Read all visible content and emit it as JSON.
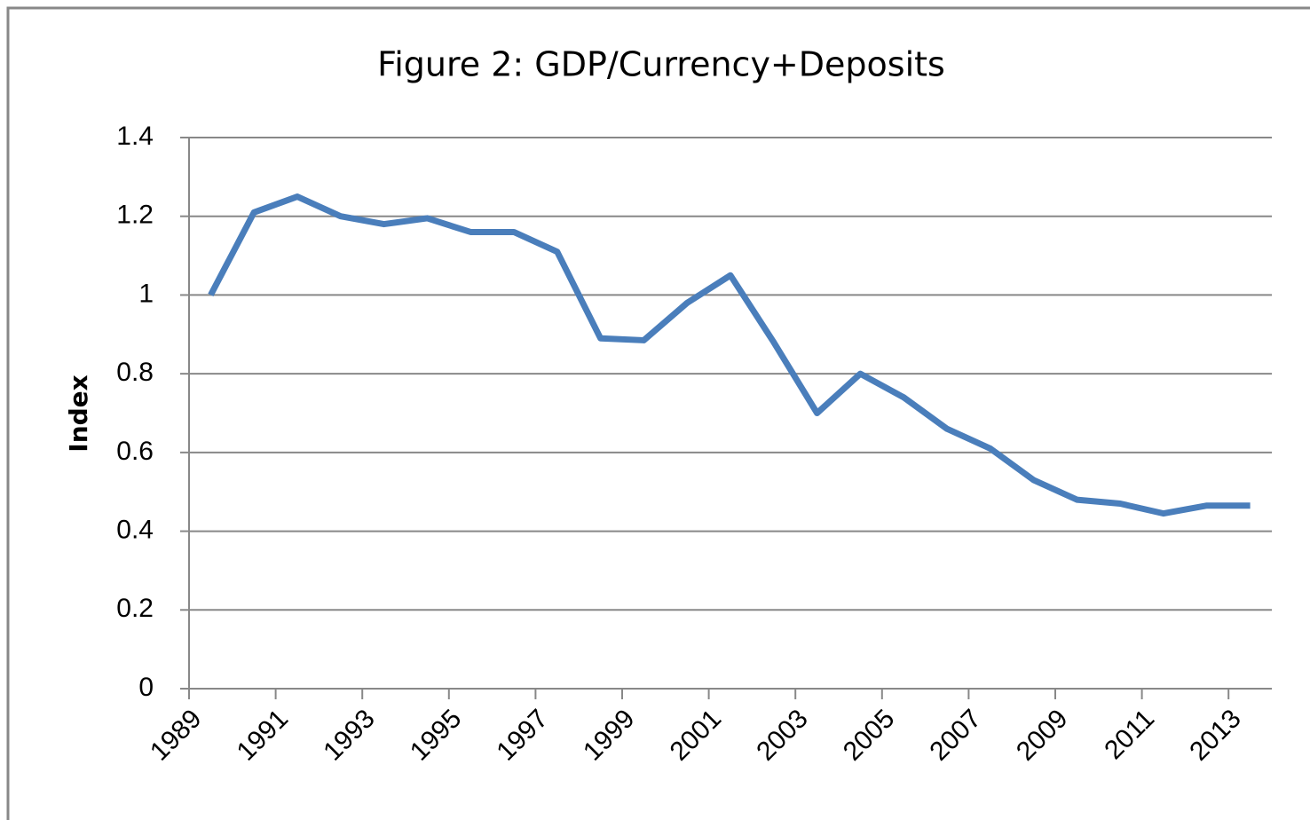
{
  "chart_data": {
    "type": "line",
    "title": "Figure 2: GDP/Currency+Deposits",
    "y_label": "Index",
    "categories": [
      "1989",
      null,
      "1991",
      null,
      "1993",
      null,
      "1995",
      null,
      "1997",
      null,
      "1999",
      null,
      "2001",
      null,
      "2003",
      null,
      "2005",
      null,
      "2007",
      null,
      "2009",
      null,
      "2011",
      null,
      "2013"
    ],
    "series": [
      {
        "name": "GDP/Currency+Deposits",
        "color": "#4a7ebb",
        "values": [
          1.0,
          1.21,
          1.25,
          1.2,
          1.18,
          1.195,
          1.16,
          1.16,
          1.11,
          0.89,
          0.885,
          0.98,
          1.05,
          0.88,
          0.7,
          0.8,
          0.74,
          0.66,
          0.61,
          0.53,
          0.48,
          0.47,
          0.445,
          0.465,
          0.465
        ]
      }
    ],
    "ylim": [
      0,
      1.4
    ],
    "yticks": [
      0,
      0.2,
      0.4,
      0.6,
      0.8,
      1,
      1.2,
      1.4
    ],
    "grid": true
  }
}
